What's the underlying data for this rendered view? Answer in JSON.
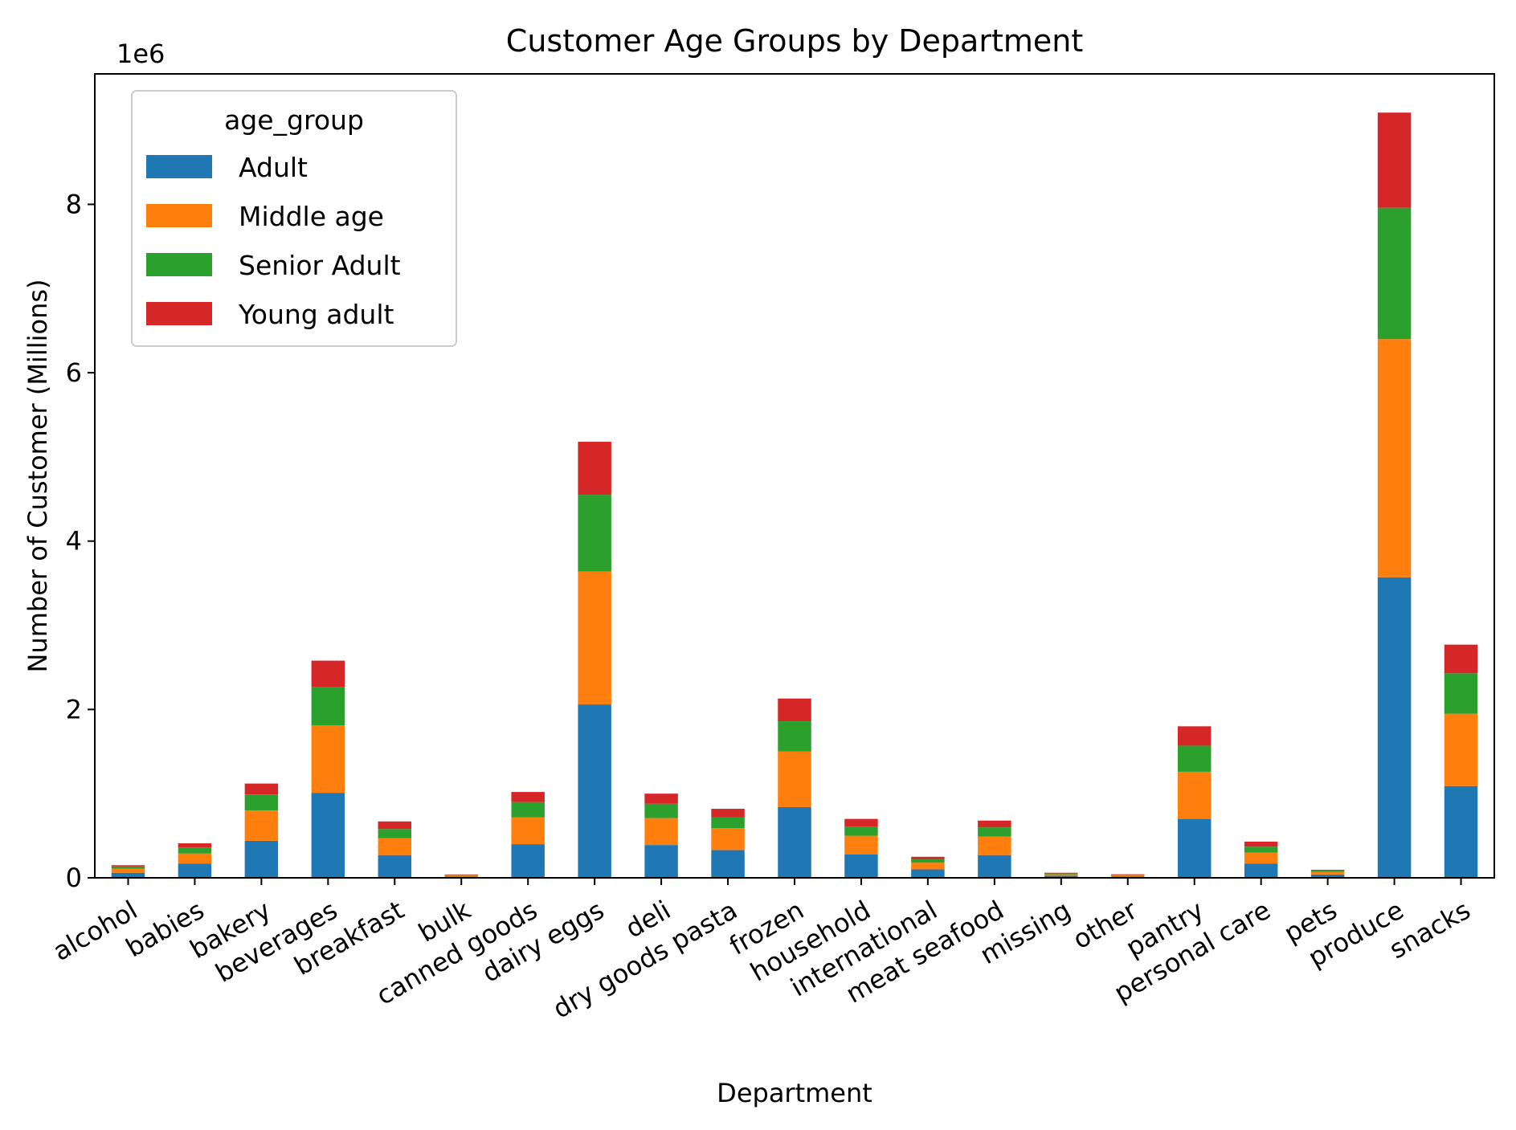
{
  "chart_data": {
    "type": "bar",
    "stacked": true,
    "title": "Customer Age Groups by Department",
    "xlabel": "Department",
    "ylabel": "Number of Customer (Millions)",
    "y_offset_label": "1e6",
    "ylim": [
      0,
      9.55
    ],
    "y_ticks": [
      0,
      2,
      4,
      6,
      8
    ],
    "legend": {
      "title": "age_group",
      "position": "top-left"
    },
    "categories": [
      "alcohol",
      "babies",
      "bakery",
      "beverages",
      "breakfast",
      "bulk",
      "canned goods",
      "dairy eggs",
      "deli",
      "dry goods pasta",
      "frozen",
      "household",
      "international",
      "meat seafood",
      "missing",
      "other",
      "pantry",
      "personal care",
      "pets",
      "produce",
      "snacks"
    ],
    "series": [
      {
        "name": "Adult",
        "color": "#1f77b4",
        "values": [
          0.06,
          0.17,
          0.44,
          1.01,
          0.27,
          0.015,
          0.4,
          2.06,
          0.39,
          0.33,
          0.84,
          0.28,
          0.1,
          0.27,
          0.025,
          0.015,
          0.7,
          0.17,
          0.04,
          3.57,
          1.09
        ]
      },
      {
        "name": "Middle age",
        "color": "#ff7f0e",
        "values": [
          0.05,
          0.12,
          0.36,
          0.8,
          0.2,
          0.013,
          0.32,
          1.58,
          0.32,
          0.26,
          0.66,
          0.22,
          0.08,
          0.22,
          0.018,
          0.013,
          0.56,
          0.13,
          0.03,
          2.83,
          0.86
        ]
      },
      {
        "name": "Senior Adult",
        "color": "#2ca02c",
        "values": [
          0.025,
          0.07,
          0.19,
          0.46,
          0.11,
          0.007,
          0.18,
          0.91,
          0.17,
          0.13,
          0.36,
          0.11,
          0.04,
          0.11,
          0.01,
          0.008,
          0.31,
          0.07,
          0.015,
          1.56,
          0.48
        ]
      },
      {
        "name": "Young adult",
        "color": "#d62728",
        "values": [
          0.015,
          0.05,
          0.13,
          0.31,
          0.09,
          0.005,
          0.12,
          0.63,
          0.12,
          0.1,
          0.27,
          0.09,
          0.03,
          0.08,
          0.007,
          0.006,
          0.23,
          0.06,
          0.01,
          1.13,
          0.34
        ]
      }
    ]
  }
}
